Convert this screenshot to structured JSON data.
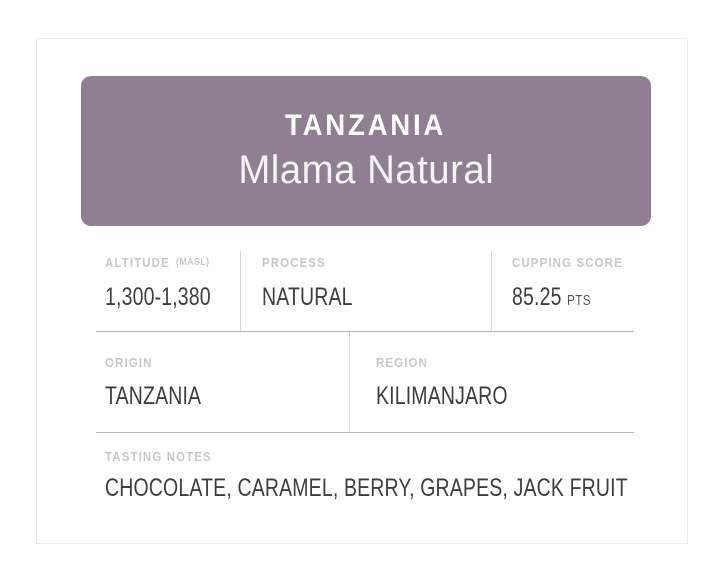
{
  "label": {
    "header": {
      "country": "TANZANIA",
      "lot_name": "Mlama Natural"
    },
    "fields": {
      "altitude": {
        "label": "ALTITUDE",
        "unit_note": "(MASL)",
        "value": "1,300-1,380"
      },
      "process": {
        "label": "PROCESS",
        "value": "NATURAL"
      },
      "cupping_score": {
        "label": "CUPPING SCORE",
        "value": "85.25",
        "unit": "PTS"
      },
      "origin": {
        "label": "ORIGIN",
        "value": "TANZANIA"
      },
      "region": {
        "label": "REGION",
        "value": "KILIMANJARO"
      },
      "tasting_notes": {
        "label": "TASTING NOTES",
        "value": "CHOCOLATE, CARAMEL, BERRY, GRAPES, JACK FRUIT"
      }
    },
    "colors": {
      "header_background": "#8e7f91",
      "header_text": "#ffffff",
      "field_label_text": "#c8c8c8",
      "field_value_text": "#3d3d3d",
      "horizontal_rule": "#b3b3b3",
      "vertical_divider": "#d4d4d4",
      "card_border": "#ececec"
    }
  }
}
